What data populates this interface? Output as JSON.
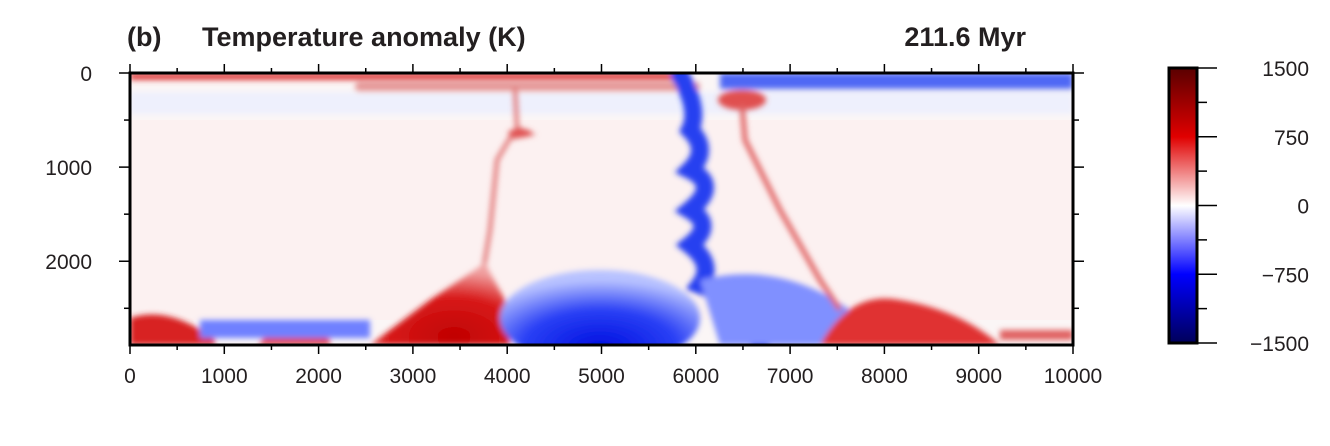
{
  "chart_data": {
    "type": "heatmap",
    "panel_label": "(b)",
    "title": "Temperature anomaly (K)",
    "time_label": "211.6 Myr",
    "xlabel": "",
    "ylabel": "",
    "xlim": [
      0,
      10000
    ],
    "ylim": [
      2890,
      0
    ],
    "x_ticks": [
      "0",
      "1000",
      "2000",
      "3000",
      "4000",
      "5000",
      "6000",
      "7000",
      "8000",
      "9000",
      "10000"
    ],
    "x_tick_values": [
      0,
      1000,
      2000,
      3000,
      4000,
      5000,
      6000,
      7000,
      8000,
      9000,
      10000
    ],
    "y_ticks": [
      "0",
      "1000",
      "2000"
    ],
    "y_tick_values": [
      0,
      1000,
      2000
    ],
    "colorbar": {
      "range": [
        -1500,
        1500
      ],
      "ticks": [
        "1500",
        "750",
        "0",
        "−750",
        "−1500"
      ],
      "tick_values": [
        1500,
        750,
        0,
        -750,
        -1500
      ],
      "colors": [
        "#00005a",
        "#0000ff",
        "#ffffff",
        "#e00000",
        "#5a0000"
      ]
    }
  }
}
